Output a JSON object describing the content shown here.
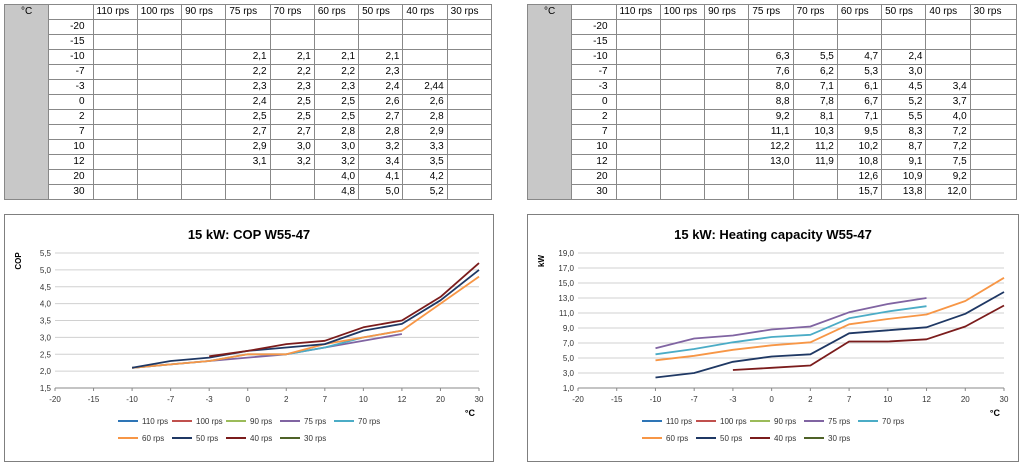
{
  "table1": {
    "unit": "°C",
    "headers": [
      "110 rps",
      "100 rps",
      "90 rps",
      "75 rps",
      "70 rps",
      "60 rps",
      "50 rps",
      "40 rps",
      "30 rps"
    ],
    "rows": [
      {
        "t": "-20",
        "v": [
          "",
          "",
          "",
          "",
          "",
          "",
          "",
          "",
          ""
        ]
      },
      {
        "t": "-15",
        "v": [
          "",
          "",
          "",
          "",
          "",
          "",
          "",
          "",
          ""
        ]
      },
      {
        "t": "-10",
        "v": [
          "",
          "",
          "",
          "2,1",
          "2,1",
          "2,1",
          "2,1",
          "",
          ""
        ]
      },
      {
        "t": "-7",
        "v": [
          "",
          "",
          "",
          "2,2",
          "2,2",
          "2,2",
          "2,3",
          "",
          ""
        ]
      },
      {
        "t": "-3",
        "v": [
          "",
          "",
          "",
          "2,3",
          "2,3",
          "2,3",
          "2,4",
          "2,44",
          ""
        ]
      },
      {
        "t": "0",
        "v": [
          "",
          "",
          "",
          "2,4",
          "2,5",
          "2,5",
          "2,6",
          "2,6",
          ""
        ]
      },
      {
        "t": "2",
        "v": [
          "",
          "",
          "",
          "2,5",
          "2,5",
          "2,5",
          "2,7",
          "2,8",
          ""
        ]
      },
      {
        "t": "7",
        "v": [
          "",
          "",
          "",
          "2,7",
          "2,7",
          "2,8",
          "2,8",
          "2,9",
          ""
        ]
      },
      {
        "t": "10",
        "v": [
          "",
          "",
          "",
          "2,9",
          "3,0",
          "3,0",
          "3,2",
          "3,3",
          ""
        ]
      },
      {
        "t": "12",
        "v": [
          "",
          "",
          "",
          "3,1",
          "3,2",
          "3,2",
          "3,4",
          "3,5",
          ""
        ]
      },
      {
        "t": "20",
        "v": [
          "",
          "",
          "",
          "",
          "",
          "4,0",
          "4,1",
          "4,2",
          ""
        ]
      },
      {
        "t": "30",
        "v": [
          "",
          "",
          "",
          "",
          "",
          "4,8",
          "5,0",
          "5,2",
          ""
        ]
      }
    ]
  },
  "table2": {
    "unit": "°C",
    "headers": [
      "110 rps",
      "100 rps",
      "90 rps",
      "75 rps",
      "70 rps",
      "60 rps",
      "50 rps",
      "40 rps",
      "30 rps"
    ],
    "rows": [
      {
        "t": "-20",
        "v": [
          "",
          "",
          "",
          "",
          "",
          "",
          "",
          "",
          ""
        ]
      },
      {
        "t": "-15",
        "v": [
          "",
          "",
          "",
          "",
          "",
          "",
          "",
          "",
          ""
        ]
      },
      {
        "t": "-10",
        "v": [
          "",
          "",
          "",
          "6,3",
          "5,5",
          "4,7",
          "2,4",
          "",
          ""
        ]
      },
      {
        "t": "-7",
        "v": [
          "",
          "",
          "",
          "7,6",
          "6,2",
          "5,3",
          "3,0",
          "",
          ""
        ]
      },
      {
        "t": "-3",
        "v": [
          "",
          "",
          "",
          "8,0",
          "7,1",
          "6,1",
          "4,5",
          "3,4",
          ""
        ]
      },
      {
        "t": "0",
        "v": [
          "",
          "",
          "",
          "8,8",
          "7,8",
          "6,7",
          "5,2",
          "3,7",
          ""
        ]
      },
      {
        "t": "2",
        "v": [
          "",
          "",
          "",
          "9,2",
          "8,1",
          "7,1",
          "5,5",
          "4,0",
          ""
        ]
      },
      {
        "t": "7",
        "v": [
          "",
          "",
          "",
          "11,1",
          "10,3",
          "9,5",
          "8,3",
          "7,2",
          ""
        ]
      },
      {
        "t": "10",
        "v": [
          "",
          "",
          "",
          "12,2",
          "11,2",
          "10,2",
          "8,7",
          "7,2",
          ""
        ]
      },
      {
        "t": "12",
        "v": [
          "",
          "",
          "",
          "13,0",
          "11,9",
          "10,8",
          "9,1",
          "7,5",
          ""
        ]
      },
      {
        "t": "20",
        "v": [
          "",
          "",
          "",
          "",
          "",
          "12,6",
          "10,9",
          "9,2",
          ""
        ]
      },
      {
        "t": "30",
        "v": [
          "",
          "",
          "",
          "",
          "",
          "15,7",
          "13,8",
          "12,0",
          ""
        ]
      }
    ]
  },
  "chart_data": [
    {
      "type": "line",
      "title": "15 kW: COP W55-47",
      "ylabel": "COP",
      "xlabel": "°C",
      "xlim": [
        -20,
        30
      ],
      "ylim": [
        1.5,
        5.5
      ],
      "xticks": [
        "-20",
        "-15",
        "-10",
        "-7",
        "-3",
        "0",
        "2",
        "7",
        "10",
        "12",
        "20",
        "30"
      ],
      "yticks": [
        "1,5",
        "2,0",
        "2,5",
        "3,0",
        "3,5",
        "4,0",
        "4,5",
        "5,0",
        "5,5"
      ],
      "legend_position": "bottom",
      "grid": true,
      "x": [
        -10,
        -7,
        -3,
        0,
        2,
        7,
        10,
        12,
        20,
        30
      ],
      "series": [
        {
          "name": "110 rps",
          "color": "#2e75b6",
          "values": [
            null,
            null,
            null,
            null,
            null,
            null,
            null,
            null,
            null,
            null
          ]
        },
        {
          "name": "100 rps",
          "color": "#c0504d",
          "values": [
            null,
            null,
            null,
            null,
            null,
            null,
            null,
            null,
            null,
            null
          ]
        },
        {
          "name": "90 rps",
          "color": "#9bbb59",
          "values": [
            null,
            null,
            null,
            null,
            null,
            null,
            null,
            null,
            null,
            null
          ]
        },
        {
          "name": "75 rps",
          "color": "#8064a2",
          "values": [
            2.1,
            2.2,
            2.3,
            2.4,
            2.5,
            2.7,
            2.9,
            3.1,
            null,
            null
          ]
        },
        {
          "name": "70 rps",
          "color": "#4bacc6",
          "values": [
            2.1,
            2.2,
            2.3,
            2.5,
            2.5,
            2.7,
            3.0,
            3.2,
            null,
            null
          ]
        },
        {
          "name": "60 rps",
          "color": "#f79646",
          "values": [
            2.1,
            2.2,
            2.3,
            2.5,
            2.5,
            2.8,
            3.0,
            3.2,
            4.0,
            4.8
          ]
        },
        {
          "name": "50 rps",
          "color": "#1f3864",
          "values": [
            2.1,
            2.3,
            2.4,
            2.6,
            2.7,
            2.8,
            3.2,
            3.4,
            4.1,
            5.0
          ]
        },
        {
          "name": "40 rps",
          "color": "#7b1c1c",
          "values": [
            null,
            null,
            2.44,
            2.6,
            2.8,
            2.9,
            3.3,
            3.5,
            4.2,
            5.2
          ]
        },
        {
          "name": "30 rps",
          "color": "#4f6228",
          "values": [
            null,
            null,
            null,
            null,
            null,
            null,
            null,
            null,
            null,
            null
          ]
        }
      ]
    },
    {
      "type": "line",
      "title": "15 kW: Heating capacity W55-47",
      "ylabel": "kW",
      "xlabel": "°C",
      "xlim": [
        -20,
        30
      ],
      "ylim": [
        1.0,
        19.0
      ],
      "xticks": [
        "-20",
        "-15",
        "-10",
        "-7",
        "-3",
        "0",
        "2",
        "7",
        "10",
        "12",
        "20",
        "30"
      ],
      "yticks": [
        "1,0",
        "3,0",
        "5,0",
        "7,0",
        "9,0",
        "11,0",
        "13,0",
        "15,0",
        "17,0",
        "19,0"
      ],
      "legend_position": "bottom",
      "grid": true,
      "x": [
        -10,
        -7,
        -3,
        0,
        2,
        7,
        10,
        12,
        20,
        30
      ],
      "series": [
        {
          "name": "110 rps",
          "color": "#2e75b6",
          "values": [
            null,
            null,
            null,
            null,
            null,
            null,
            null,
            null,
            null,
            null
          ]
        },
        {
          "name": "100 rps",
          "color": "#c0504d",
          "values": [
            null,
            null,
            null,
            null,
            null,
            null,
            null,
            null,
            null,
            null
          ]
        },
        {
          "name": "90 rps",
          "color": "#9bbb59",
          "values": [
            null,
            null,
            null,
            null,
            null,
            null,
            null,
            null,
            null,
            null
          ]
        },
        {
          "name": "75 rps",
          "color": "#8064a2",
          "values": [
            6.3,
            7.6,
            8.0,
            8.8,
            9.2,
            11.1,
            12.2,
            13.0,
            null,
            null
          ]
        },
        {
          "name": "70 rps",
          "color": "#4bacc6",
          "values": [
            5.5,
            6.2,
            7.1,
            7.8,
            8.1,
            10.3,
            11.2,
            11.9,
            null,
            null
          ]
        },
        {
          "name": "60 rps",
          "color": "#f79646",
          "values": [
            4.7,
            5.3,
            6.1,
            6.7,
            7.1,
            9.5,
            10.2,
            10.8,
            12.6,
            15.7
          ]
        },
        {
          "name": "50 rps",
          "color": "#1f3864",
          "values": [
            2.4,
            3.0,
            4.5,
            5.2,
            5.5,
            8.3,
            8.7,
            9.1,
            10.9,
            13.8
          ]
        },
        {
          "name": "40 rps",
          "color": "#7b1c1c",
          "values": [
            null,
            null,
            3.4,
            3.7,
            4.0,
            7.2,
            7.2,
            7.5,
            9.2,
            12.0
          ]
        },
        {
          "name": "30 rps",
          "color": "#4f6228",
          "values": [
            null,
            null,
            null,
            null,
            null,
            null,
            null,
            null,
            null,
            null
          ]
        }
      ]
    }
  ]
}
